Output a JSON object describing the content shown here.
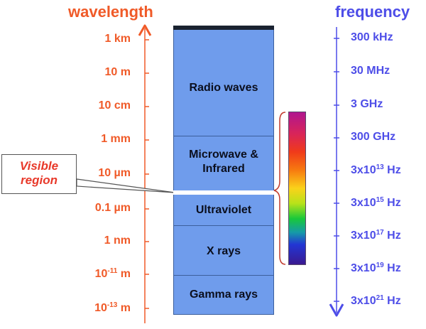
{
  "headers": {
    "wavelength": "wavelength",
    "frequency": "frequency"
  },
  "wavelength_labels": [
    {
      "base": "1 km",
      "sup": ""
    },
    {
      "base": "10 m",
      "sup": ""
    },
    {
      "base": "10 cm",
      "sup": ""
    },
    {
      "base": "1 mm",
      "sup": ""
    },
    {
      "base": "10 µm",
      "sup": ""
    },
    {
      "base": "0.1 µm",
      "sup": ""
    },
    {
      "base": "1 nm",
      "sup": ""
    },
    {
      "base": "10",
      "sup": "-11",
      "unit": " m"
    },
    {
      "base": "10",
      "sup": "-13",
      "unit": " m"
    }
  ],
  "frequency_labels": [
    {
      "base": "300 kHz",
      "sup": ""
    },
    {
      "base": "30 MHz",
      "sup": ""
    },
    {
      "base": "3 GHz",
      "sup": ""
    },
    {
      "base": "300 GHz",
      "sup": ""
    },
    {
      "base": "3x10",
      "sup": "13",
      "unit": " Hz"
    },
    {
      "base": "3x10",
      "sup": "15",
      "unit": " Hz"
    },
    {
      "base": "3x10",
      "sup": "17",
      "unit": " Hz"
    },
    {
      "base": "3x10",
      "sup": "19",
      "unit": " Hz"
    },
    {
      "base": "3x10",
      "sup": "21",
      "unit": " Hz"
    }
  ],
  "bands": [
    "Radio waves",
    "Microwave & Infrared",
    "Ultraviolet",
    "X rays",
    "Gamma rays"
  ],
  "callout": {
    "line1": "Visible",
    "line2": "region"
  },
  "colors": {
    "wavelength": "#f05a28",
    "frequency": "#4d4de8",
    "band_fill": "#6f9cec",
    "band_border": "#3c5f9c",
    "callout_text": "#e8392a"
  }
}
